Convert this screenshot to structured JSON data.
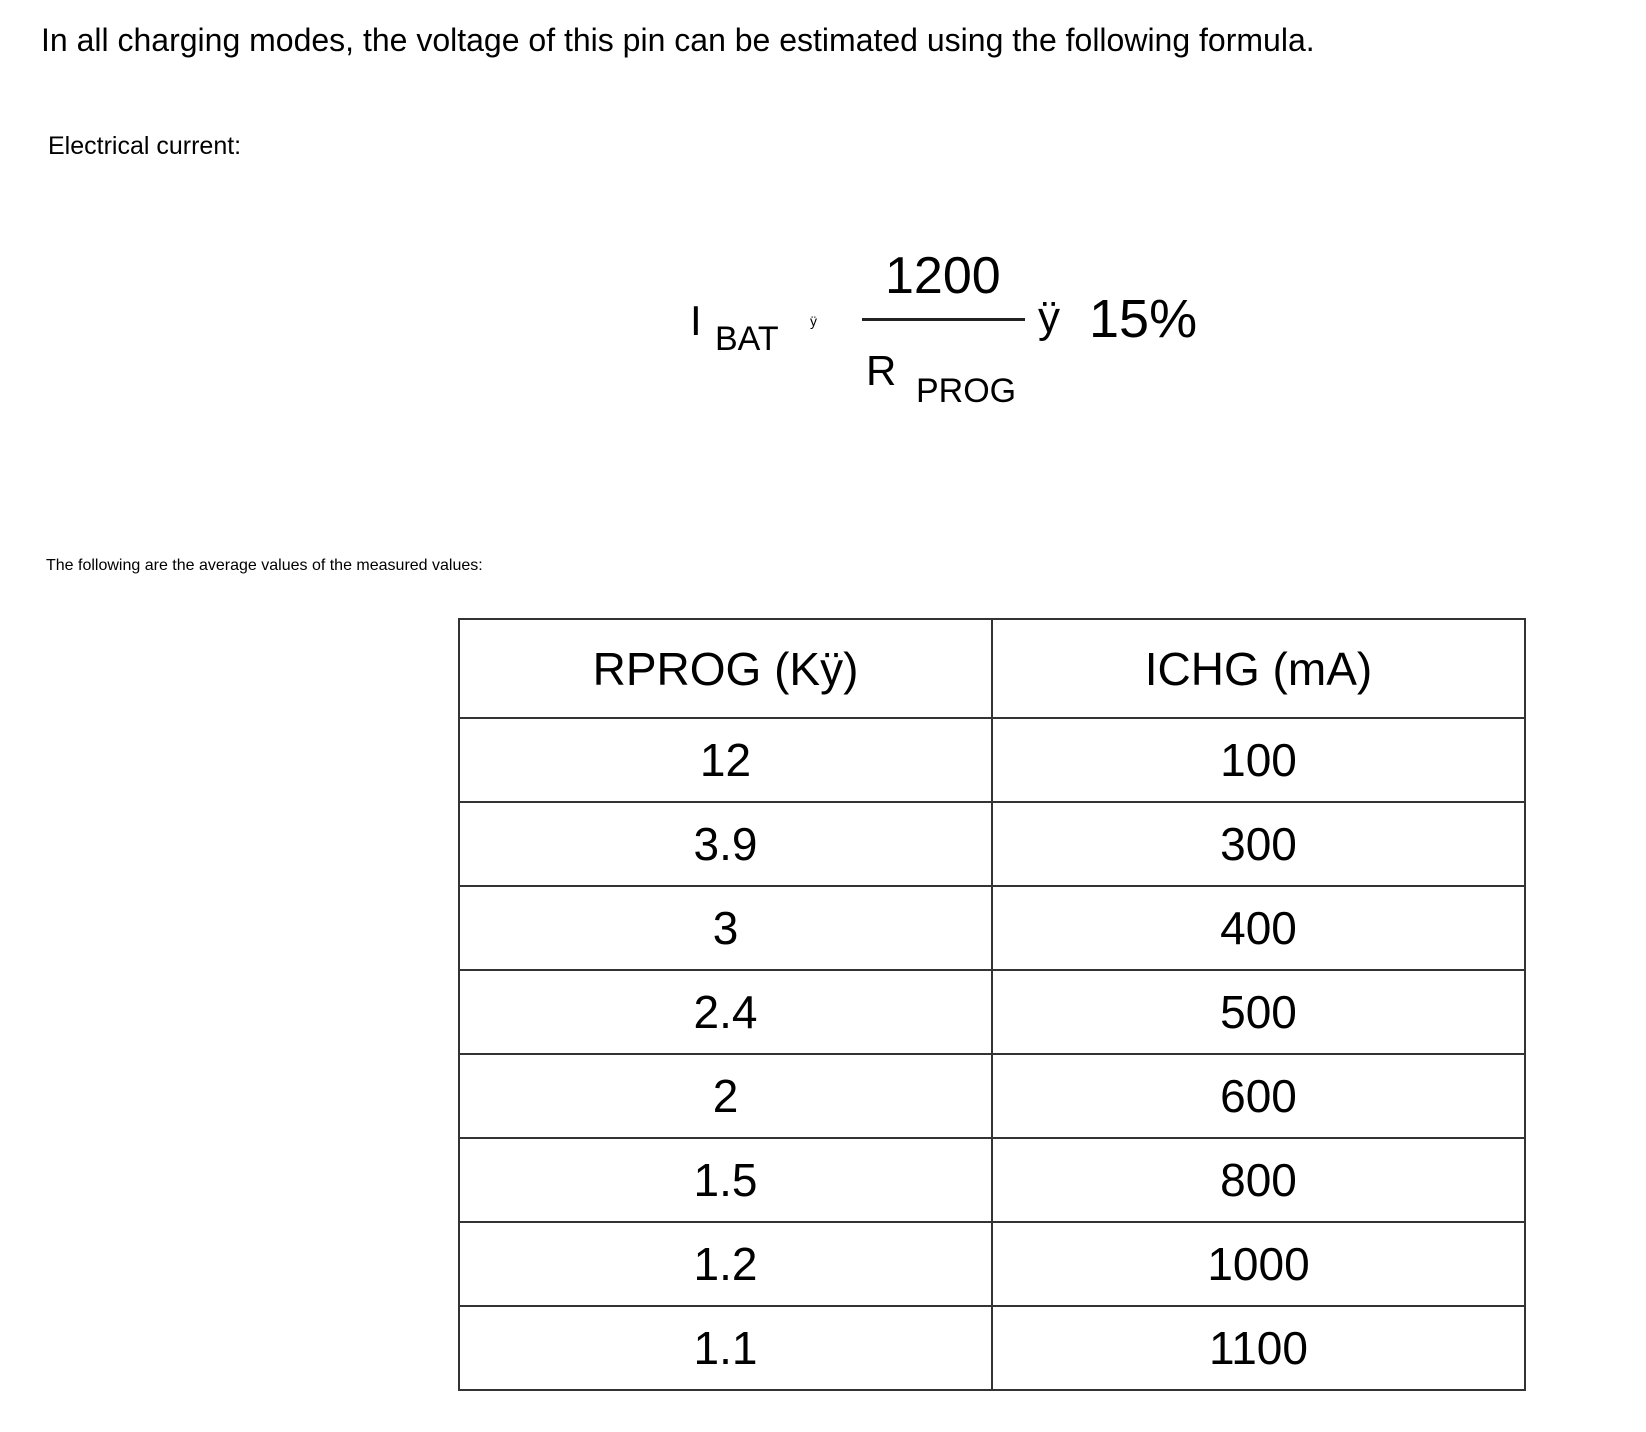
{
  "intro": "In all charging modes, the voltage of this pin can be estimated using the following formula.",
  "electrical_label": "Electrical current:",
  "formula": {
    "lhs": "I",
    "lhs_sub": "BAT",
    "approx_symbol": "ÿ",
    "numerator": "1200",
    "denominator": "R",
    "denominator_sub": "PROG",
    "tolerance_symbol": "ÿ",
    "tolerance": "15%"
  },
  "avg_note": "The following are the average values of the measured values:",
  "table": {
    "headers": [
      "RPROG (Kÿ)",
      "ICHG (mA)"
    ],
    "rows": [
      [
        "12",
        "100"
      ],
      [
        "3.9",
        "300"
      ],
      [
        "3",
        "400"
      ],
      [
        "2.4",
        "500"
      ],
      [
        "2",
        "600"
      ],
      [
        "1.5",
        "800"
      ],
      [
        "1.2",
        "1000"
      ],
      [
        "1.1",
        "1100"
      ]
    ]
  }
}
